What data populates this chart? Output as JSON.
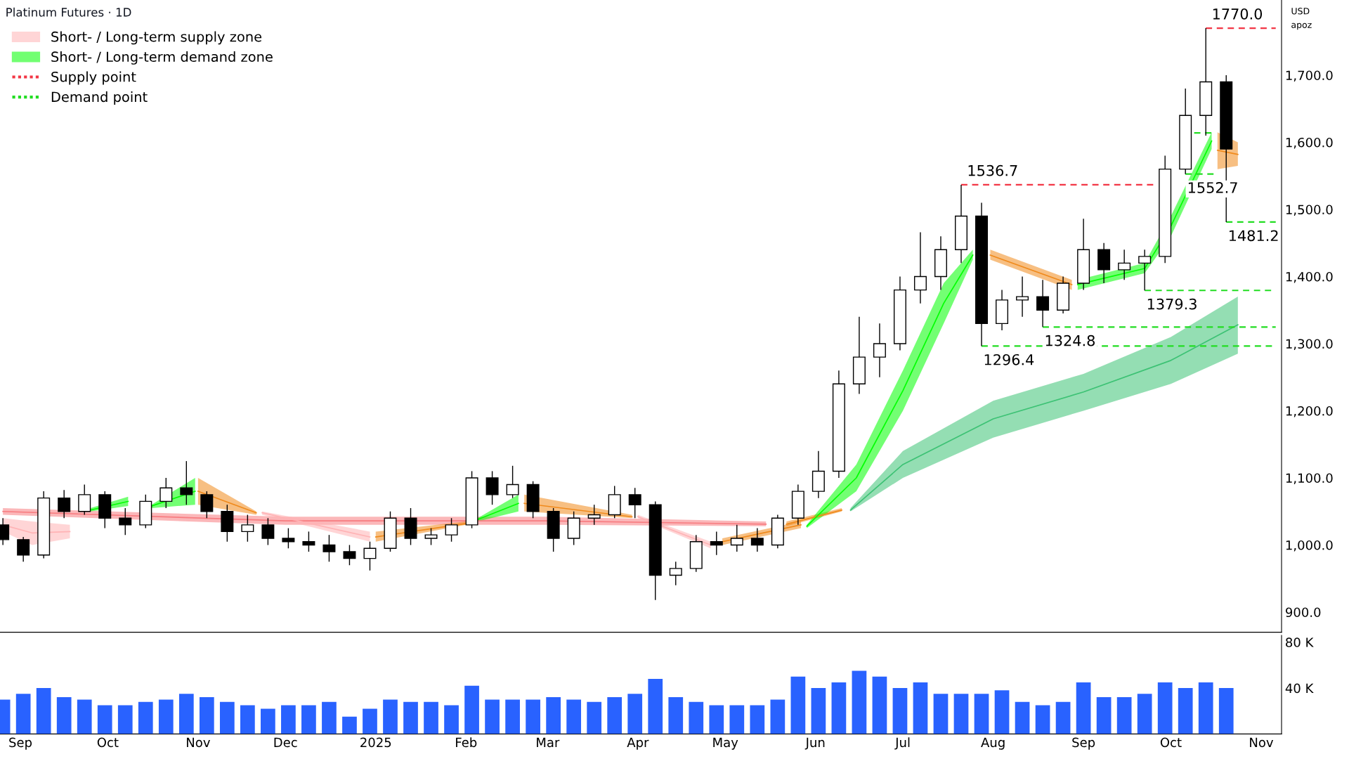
{
  "chart_data": [
    {
      "type": "candlestick",
      "title": "Platinum Futures · 1D",
      "annotations": [
        "USD",
        "apoz",
        {
          "text": "1770.0",
          "x": "2025-10-13",
          "y": 1770
        },
        {
          "text": "1536.7",
          "x": "2025-07-21",
          "y": 1536.7
        },
        {
          "text": "1552.7",
          "x": "2025-10-06",
          "y": 1552.7
        },
        {
          "text": "1481.2",
          "x": "2025-10-20",
          "y": 1481.2
        },
        {
          "text": "1379.3",
          "x": "2025-09-22",
          "y": 1379.3
        },
        {
          "text": "1324.8",
          "x": "2025-08-18",
          "y": 1324.8
        },
        {
          "text": "1296.4",
          "x": "2025-07-28",
          "y": 1296.4
        }
      ],
      "x": [
        "2024-08-26",
        "2024-09-02",
        "2024-09-09",
        "2024-09-16",
        "2024-09-23",
        "2024-09-30",
        "2024-10-07",
        "2024-10-14",
        "2024-10-21",
        "2024-10-28",
        "2024-11-04",
        "2024-11-11",
        "2024-11-18",
        "2024-11-25",
        "2024-12-02",
        "2024-12-09",
        "2024-12-16",
        "2024-12-23",
        "2024-12-30",
        "2025-01-06",
        "2025-01-13",
        "2025-01-20",
        "2025-01-27",
        "2025-02-03",
        "2025-02-10",
        "2025-02-17",
        "2025-02-24",
        "2025-03-03",
        "2025-03-10",
        "2025-03-17",
        "2025-03-24",
        "2025-03-31",
        "2025-04-07",
        "2025-04-14",
        "2025-04-21",
        "2025-04-28",
        "2025-05-05",
        "2025-05-12",
        "2025-05-19",
        "2025-05-26",
        "2025-06-02",
        "2025-06-09",
        "2025-06-16",
        "2025-06-23",
        "2025-06-30",
        "2025-07-07",
        "2025-07-14",
        "2025-07-21",
        "2025-07-28",
        "2025-08-04",
        "2025-08-11",
        "2025-08-18",
        "2025-08-25",
        "2025-09-01",
        "2025-09-08",
        "2025-09-15",
        "2025-09-22",
        "2025-09-29",
        "2025-10-06",
        "2025-10-13",
        "2025-10-20"
      ],
      "ohlc": [
        [
          1030,
          1040,
          1000,
          1008
        ],
        [
          1008,
          1012,
          975,
          985
        ],
        [
          985,
          1080,
          980,
          1070
        ],
        [
          1070,
          1082,
          1040,
          1050
        ],
        [
          1050,
          1090,
          1045,
          1075
        ],
        [
          1075,
          1080,
          1025,
          1040
        ],
        [
          1040,
          1055,
          1015,
          1030
        ],
        [
          1030,
          1075,
          1025,
          1065
        ],
        [
          1065,
          1100,
          1055,
          1085
        ],
        [
          1085,
          1125,
          1060,
          1075
        ],
        [
          1075,
          1080,
          1040,
          1050
        ],
        [
          1050,
          1060,
          1005,
          1020
        ],
        [
          1020,
          1045,
          1005,
          1030
        ],
        [
          1030,
          1040,
          1000,
          1010
        ],
        [
          1010,
          1025,
          995,
          1005
        ],
        [
          1005,
          1020,
          990,
          1000
        ],
        [
          1000,
          1015,
          975,
          990
        ],
        [
          990,
          1000,
          970,
          980
        ],
        [
          980,
          1005,
          962,
          995
        ],
        [
          995,
          1050,
          990,
          1040
        ],
        [
          1040,
          1055,
          1000,
          1010
        ],
        [
          1010,
          1025,
          1000,
          1015
        ],
        [
          1015,
          1040,
          1005,
          1030
        ],
        [
          1030,
          1110,
          1025,
          1100
        ],
        [
          1100,
          1110,
          1060,
          1075
        ],
        [
          1075,
          1118,
          1070,
          1090
        ],
        [
          1090,
          1095,
          1040,
          1050
        ],
        [
          1050,
          1055,
          990,
          1010
        ],
        [
          1010,
          1050,
          1000,
          1040
        ],
        [
          1040,
          1060,
          1030,
          1045
        ],
        [
          1045,
          1088,
          1040,
          1075
        ],
        [
          1075,
          1085,
          1040,
          1060
        ],
        [
          1060,
          1065,
          918,
          955
        ],
        [
          955,
          975,
          940,
          965
        ],
        [
          965,
          1015,
          960,
          1005
        ],
        [
          1005,
          1020,
          985,
          1000
        ],
        [
          1000,
          1030,
          990,
          1010
        ],
        [
          1010,
          1025,
          990,
          1000
        ],
        [
          1000,
          1045,
          995,
          1040
        ],
        [
          1040,
          1090,
          1030,
          1080
        ],
        [
          1080,
          1140,
          1070,
          1110
        ],
        [
          1110,
          1260,
          1100,
          1240
        ],
        [
          1240,
          1340,
          1225,
          1280
        ],
        [
          1280,
          1330,
          1250,
          1300
        ],
        [
          1300,
          1400,
          1290,
          1380
        ],
        [
          1380,
          1466,
          1360,
          1400
        ],
        [
          1400,
          1460,
          1380,
          1440
        ],
        [
          1440,
          1536.7,
          1420,
          1490
        ],
        [
          1490,
          1510,
          1296.4,
          1330
        ],
        [
          1330,
          1380,
          1320,
          1365
        ],
        [
          1365,
          1400,
          1340,
          1370
        ],
        [
          1370,
          1395,
          1324.8,
          1350
        ],
        [
          1350,
          1400,
          1345,
          1390
        ],
        [
          1390,
          1486,
          1380,
          1440
        ],
        [
          1440,
          1450,
          1390,
          1410
        ],
        [
          1410,
          1440,
          1395,
          1420
        ],
        [
          1420,
          1440,
          1379.3,
          1430
        ],
        [
          1430,
          1580,
          1420,
          1560
        ],
        [
          1560,
          1680,
          1552.7,
          1640
        ],
        [
          1640,
          1770,
          1610,
          1690
        ],
        [
          1690,
          1700,
          1481.2,
          1590
        ]
      ],
      "series": [
        {
          "type": "line",
          "color": "#f77c80",
          "x": [
            "2024-08-26",
            "2024-12-01",
            "2025-03-01",
            "2025-05-15"
          ],
          "values": [
            1050,
            1036,
            1036,
            1031
          ],
          "lower": [
            1045,
            1030,
            1030,
            1028
          ],
          "upper": [
            1055,
            1042,
            1042,
            1035
          ]
        },
        {
          "type": "line",
          "color": "#f08a1c",
          "x": [
            "2025-05-22",
            "2025-06-10"
          ],
          "values": [
            1031,
            1052
          ],
          "lower": [
            1028,
            1050
          ],
          "upper": [
            1035,
            1055
          ]
        },
        {
          "type": "line",
          "color": "#3cc274",
          "x": [
            "2025-06-13",
            "2025-07-01",
            "2025-08-01",
            "2025-09-01",
            "2025-10-01",
            "2025-10-24"
          ],
          "values": [
            1052,
            1120,
            1188,
            1228,
            1275,
            1328
          ],
          "lower": [
            1050,
            1100,
            1160,
            1200,
            1240,
            1285
          ],
          "upper": [
            1055,
            1140,
            1215,
            1255,
            1310,
            1370
          ]
        },
        {
          "type": "line",
          "name": "Short- / Long-term supply zone",
          "color": "#ffb3b5",
          "x": [
            "2024-08-26",
            "2024-09-05",
            "2024-09-18"
          ],
          "values": [
            1030,
            1018,
            1020
          ],
          "lower": [
            1020,
            1000,
            1010
          ],
          "upper": [
            1040,
            1035,
            1030
          ]
        },
        {
          "type": "line",
          "color": "#00ff00",
          "x": [
            "2024-09-25",
            "2024-10-08"
          ],
          "values": [
            1052,
            1065
          ],
          "lower": [
            1050,
            1058
          ],
          "upper": [
            1055,
            1072
          ]
        },
        {
          "type": "line",
          "color": "#00ff00",
          "x": [
            "2024-10-16",
            "2024-10-31"
          ],
          "values": [
            1058,
            1080
          ],
          "lower": [
            1055,
            1060
          ],
          "upper": [
            1060,
            1100
          ]
        },
        {
          "type": "line",
          "color": "#f08a1c",
          "x": [
            "2024-11-01",
            "2024-11-21"
          ],
          "values": [
            1080,
            1048
          ],
          "lower": [
            1060,
            1045
          ],
          "upper": [
            1100,
            1050
          ]
        },
        {
          "type": "line",
          "color": "#ffb3b5",
          "x": [
            "2024-11-23",
            "2024-12-30"
          ],
          "values": [
            1048,
            1012
          ],
          "lower": [
            1045,
            1005
          ],
          "upper": [
            1050,
            1020
          ]
        },
        {
          "type": "line",
          "color": "#f08a1c",
          "x": [
            "2025-01-01",
            "2025-02-01"
          ],
          "values": [
            1012,
            1032
          ],
          "lower": [
            1005,
            1030
          ],
          "upper": [
            1020,
            1035
          ]
        },
        {
          "type": "line",
          "color": "#00ff00",
          "x": [
            "2025-02-05",
            "2025-02-19"
          ],
          "values": [
            1038,
            1062
          ],
          "lower": [
            1035,
            1050
          ],
          "upper": [
            1040,
            1075
          ]
        },
        {
          "type": "line",
          "color": "#f08a1c",
          "x": [
            "2025-02-21",
            "2025-03-30"
          ],
          "values": [
            1062,
            1042
          ],
          "lower": [
            1050,
            1040
          ],
          "upper": [
            1075,
            1045
          ]
        },
        {
          "type": "line",
          "color": "#ffb3b5",
          "x": [
            "2025-04-01",
            "2025-04-26"
          ],
          "values": [
            1042,
            1000
          ],
          "lower": [
            1040,
            995
          ],
          "upper": [
            1045,
            1005
          ]
        },
        {
          "type": "line",
          "color": "#f08a1c",
          "x": [
            "2025-04-30",
            "2025-05-27"
          ],
          "values": [
            1005,
            1030
          ],
          "lower": [
            1000,
            1025
          ],
          "upper": [
            1010,
            1035
          ]
        },
        {
          "type": "line",
          "name": "Short- / Long-term demand zone",
          "color": "#00ff00",
          "x": [
            "2025-05-29",
            "2025-06-15",
            "2025-07-01",
            "2025-07-15",
            "2025-07-25"
          ],
          "values": [
            1028,
            1100,
            1230,
            1360,
            1432
          ],
          "lower": [
            1025,
            1080,
            1200,
            1330,
            1425
          ],
          "upper": [
            1030,
            1120,
            1260,
            1390,
            1440
          ]
        },
        {
          "type": "line",
          "color": "#f08a1c",
          "x": [
            "2025-07-31",
            "2025-08-28"
          ],
          "values": [
            1432,
            1388
          ],
          "lower": [
            1425,
            1380
          ],
          "upper": [
            1440,
            1395
          ]
        },
        {
          "type": "line",
          "color": "#00ff00",
          "x": [
            "2025-08-30",
            "2025-09-22",
            "2025-10-01",
            "2025-10-15"
          ],
          "values": [
            1388,
            1412,
            1475,
            1602
          ],
          "lower": [
            1380,
            1405,
            1460,
            1590
          ],
          "upper": [
            1395,
            1420,
            1490,
            1615
          ]
        },
        {
          "type": "line",
          "color": "#f08a1c",
          "x": [
            "2025-10-17",
            "2025-10-24"
          ],
          "values": [
            1588,
            1582
          ],
          "lower": [
            1560,
            1565
          ],
          "upper": [
            1615,
            1600
          ]
        },
        {
          "type": "line",
          "name": "Supply point",
          "color": "#f23645",
          "line_style": "dashed",
          "x": [
            "2025-10-13",
            "2025-11-06"
          ],
          "values": [
            1770,
            1770
          ]
        },
        {
          "type": "line",
          "color": "#f23645",
          "line_style": "dashed",
          "x": [
            "2025-07-21",
            "2025-09-26"
          ],
          "values": [
            1536.7,
            1536.7
          ]
        },
        {
          "type": "line",
          "name": "Demand point",
          "color": "#22dd22",
          "line_style": "dashed",
          "x": [
            "2025-10-06",
            "2025-10-16"
          ],
          "values": [
            1552.7,
            1552.7
          ]
        },
        {
          "type": "line",
          "color": "#22dd22",
          "line_style": "dashed",
          "x": [
            "2025-10-09",
            "2025-10-16"
          ],
          "values": [
            1614,
            1614
          ]
        },
        {
          "type": "line",
          "color": "#22dd22",
          "line_style": "dashed",
          "x": [
            "2025-10-20",
            "2025-11-06"
          ],
          "values": [
            1481.2,
            1481.2
          ]
        },
        {
          "type": "line",
          "color": "#22dd22",
          "line_style": "dashed",
          "x": [
            "2025-09-22",
            "2025-11-06"
          ],
          "values": [
            1379.3,
            1379.3
          ]
        },
        {
          "type": "line",
          "color": "#22dd22",
          "line_style": "dashed",
          "x": [
            "2025-08-18",
            "2025-11-06"
          ],
          "values": [
            1324.8,
            1324.8
          ]
        },
        {
          "type": "line",
          "color": "#22dd22",
          "line_style": "dashed",
          "x": [
            "2025-07-28",
            "2025-11-06"
          ],
          "values": [
            1296.4,
            1296.4
          ]
        }
      ],
      "xlim": [
        "2024-08-25",
        "2025-11-08"
      ],
      "ylim": [
        870,
        1812
      ],
      "yticks": [
        {
          "value": 900,
          "label": "900.0"
        },
        {
          "value": 1000,
          "label": "1,000.0"
        },
        {
          "value": 1100,
          "label": "1,100.0"
        },
        {
          "value": 1200,
          "label": "1,200.0"
        },
        {
          "value": 1300,
          "label": "1,300.0"
        },
        {
          "value": 1400,
          "label": "1,400.0"
        },
        {
          "value": 1500,
          "label": "1,500.0"
        },
        {
          "value": 1600,
          "label": "1,600.0"
        },
        {
          "value": 1700,
          "label": "1,700.0"
        }
      ],
      "tick_labels": "y",
      "grid": false,
      "legend": "top left"
    },
    {
      "type": "bar",
      "color": "#2962ff",
      "x": [
        "2024-08-26",
        "2024-09-02",
        "2024-09-09",
        "2024-09-16",
        "2024-09-23",
        "2024-09-30",
        "2024-10-07",
        "2024-10-14",
        "2024-10-21",
        "2024-10-28",
        "2024-11-04",
        "2024-11-11",
        "2024-11-18",
        "2024-11-25",
        "2024-12-02",
        "2024-12-09",
        "2024-12-16",
        "2024-12-23",
        "2024-12-30",
        "2025-01-06",
        "2025-01-13",
        "2025-01-20",
        "2025-01-27",
        "2025-02-03",
        "2025-02-10",
        "2025-02-17",
        "2025-02-24",
        "2025-03-03",
        "2025-03-10",
        "2025-03-17",
        "2025-03-24",
        "2025-03-31",
        "2025-04-07",
        "2025-04-14",
        "2025-04-21",
        "2025-04-28",
        "2025-05-05",
        "2025-05-12",
        "2025-05-19",
        "2025-05-26",
        "2025-06-02",
        "2025-06-09",
        "2025-06-16",
        "2025-06-23",
        "2025-06-30",
        "2025-07-07",
        "2025-07-14",
        "2025-07-21",
        "2025-07-28",
        "2025-08-04",
        "2025-08-11",
        "2025-08-18",
        "2025-08-25",
        "2025-09-01",
        "2025-09-08",
        "2025-09-15",
        "2025-09-22",
        "2025-09-29",
        "2025-10-06",
        "2025-10-13",
        "2025-10-20"
      ],
      "values": [
        30000,
        35000,
        40000,
        32000,
        30000,
        25000,
        25000,
        28000,
        30000,
        35000,
        32000,
        28000,
        25000,
        22000,
        25000,
        25000,
        28000,
        15000,
        22000,
        30000,
        28000,
        28000,
        25000,
        42000,
        30000,
        30000,
        30000,
        32000,
        30000,
        28000,
        32000,
        35000,
        48000,
        32000,
        28000,
        25000,
        25000,
        25000,
        30000,
        50000,
        40000,
        45000,
        55000,
        50000,
        40000,
        45000,
        35000,
        35000,
        35000,
        38000,
        28000,
        25000,
        28000,
        45000,
        32000,
        32000,
        35000,
        45000,
        40000,
        45000,
        40000
      ],
      "xlim": [
        "2024-08-25",
        "2025-11-08"
      ],
      "xticks": [
        {
          "value": "2024-09-01",
          "label": "Sep"
        },
        {
          "value": "2024-10-01",
          "label": "Oct"
        },
        {
          "value": "2024-11-01",
          "label": "Nov"
        },
        {
          "value": "2024-12-01",
          "label": "Dec"
        },
        {
          "value": "2025-01-01",
          "label": "2025"
        },
        {
          "value": "2025-02-01",
          "label": "Feb"
        },
        {
          "value": "2025-03-01",
          "label": "Mar"
        },
        {
          "value": "2025-04-01",
          "label": "Apr"
        },
        {
          "value": "2025-05-01",
          "label": "May"
        },
        {
          "value": "2025-06-01",
          "label": "Jun"
        },
        {
          "value": "2025-07-01",
          "label": "Jul"
        },
        {
          "value": "2025-08-01",
          "label": "Aug"
        },
        {
          "value": "2025-09-01",
          "label": "Sep"
        },
        {
          "value": "2025-10-01",
          "label": "Oct"
        },
        {
          "value": "2025-11-01",
          "label": "Nov"
        }
      ],
      "ylim": [
        0,
        86000
      ],
      "yticks": [
        {
          "value": 40000,
          "label": "40 K"
        },
        {
          "value": 80000,
          "label": "80 K"
        }
      ],
      "grid": false
    }
  ]
}
